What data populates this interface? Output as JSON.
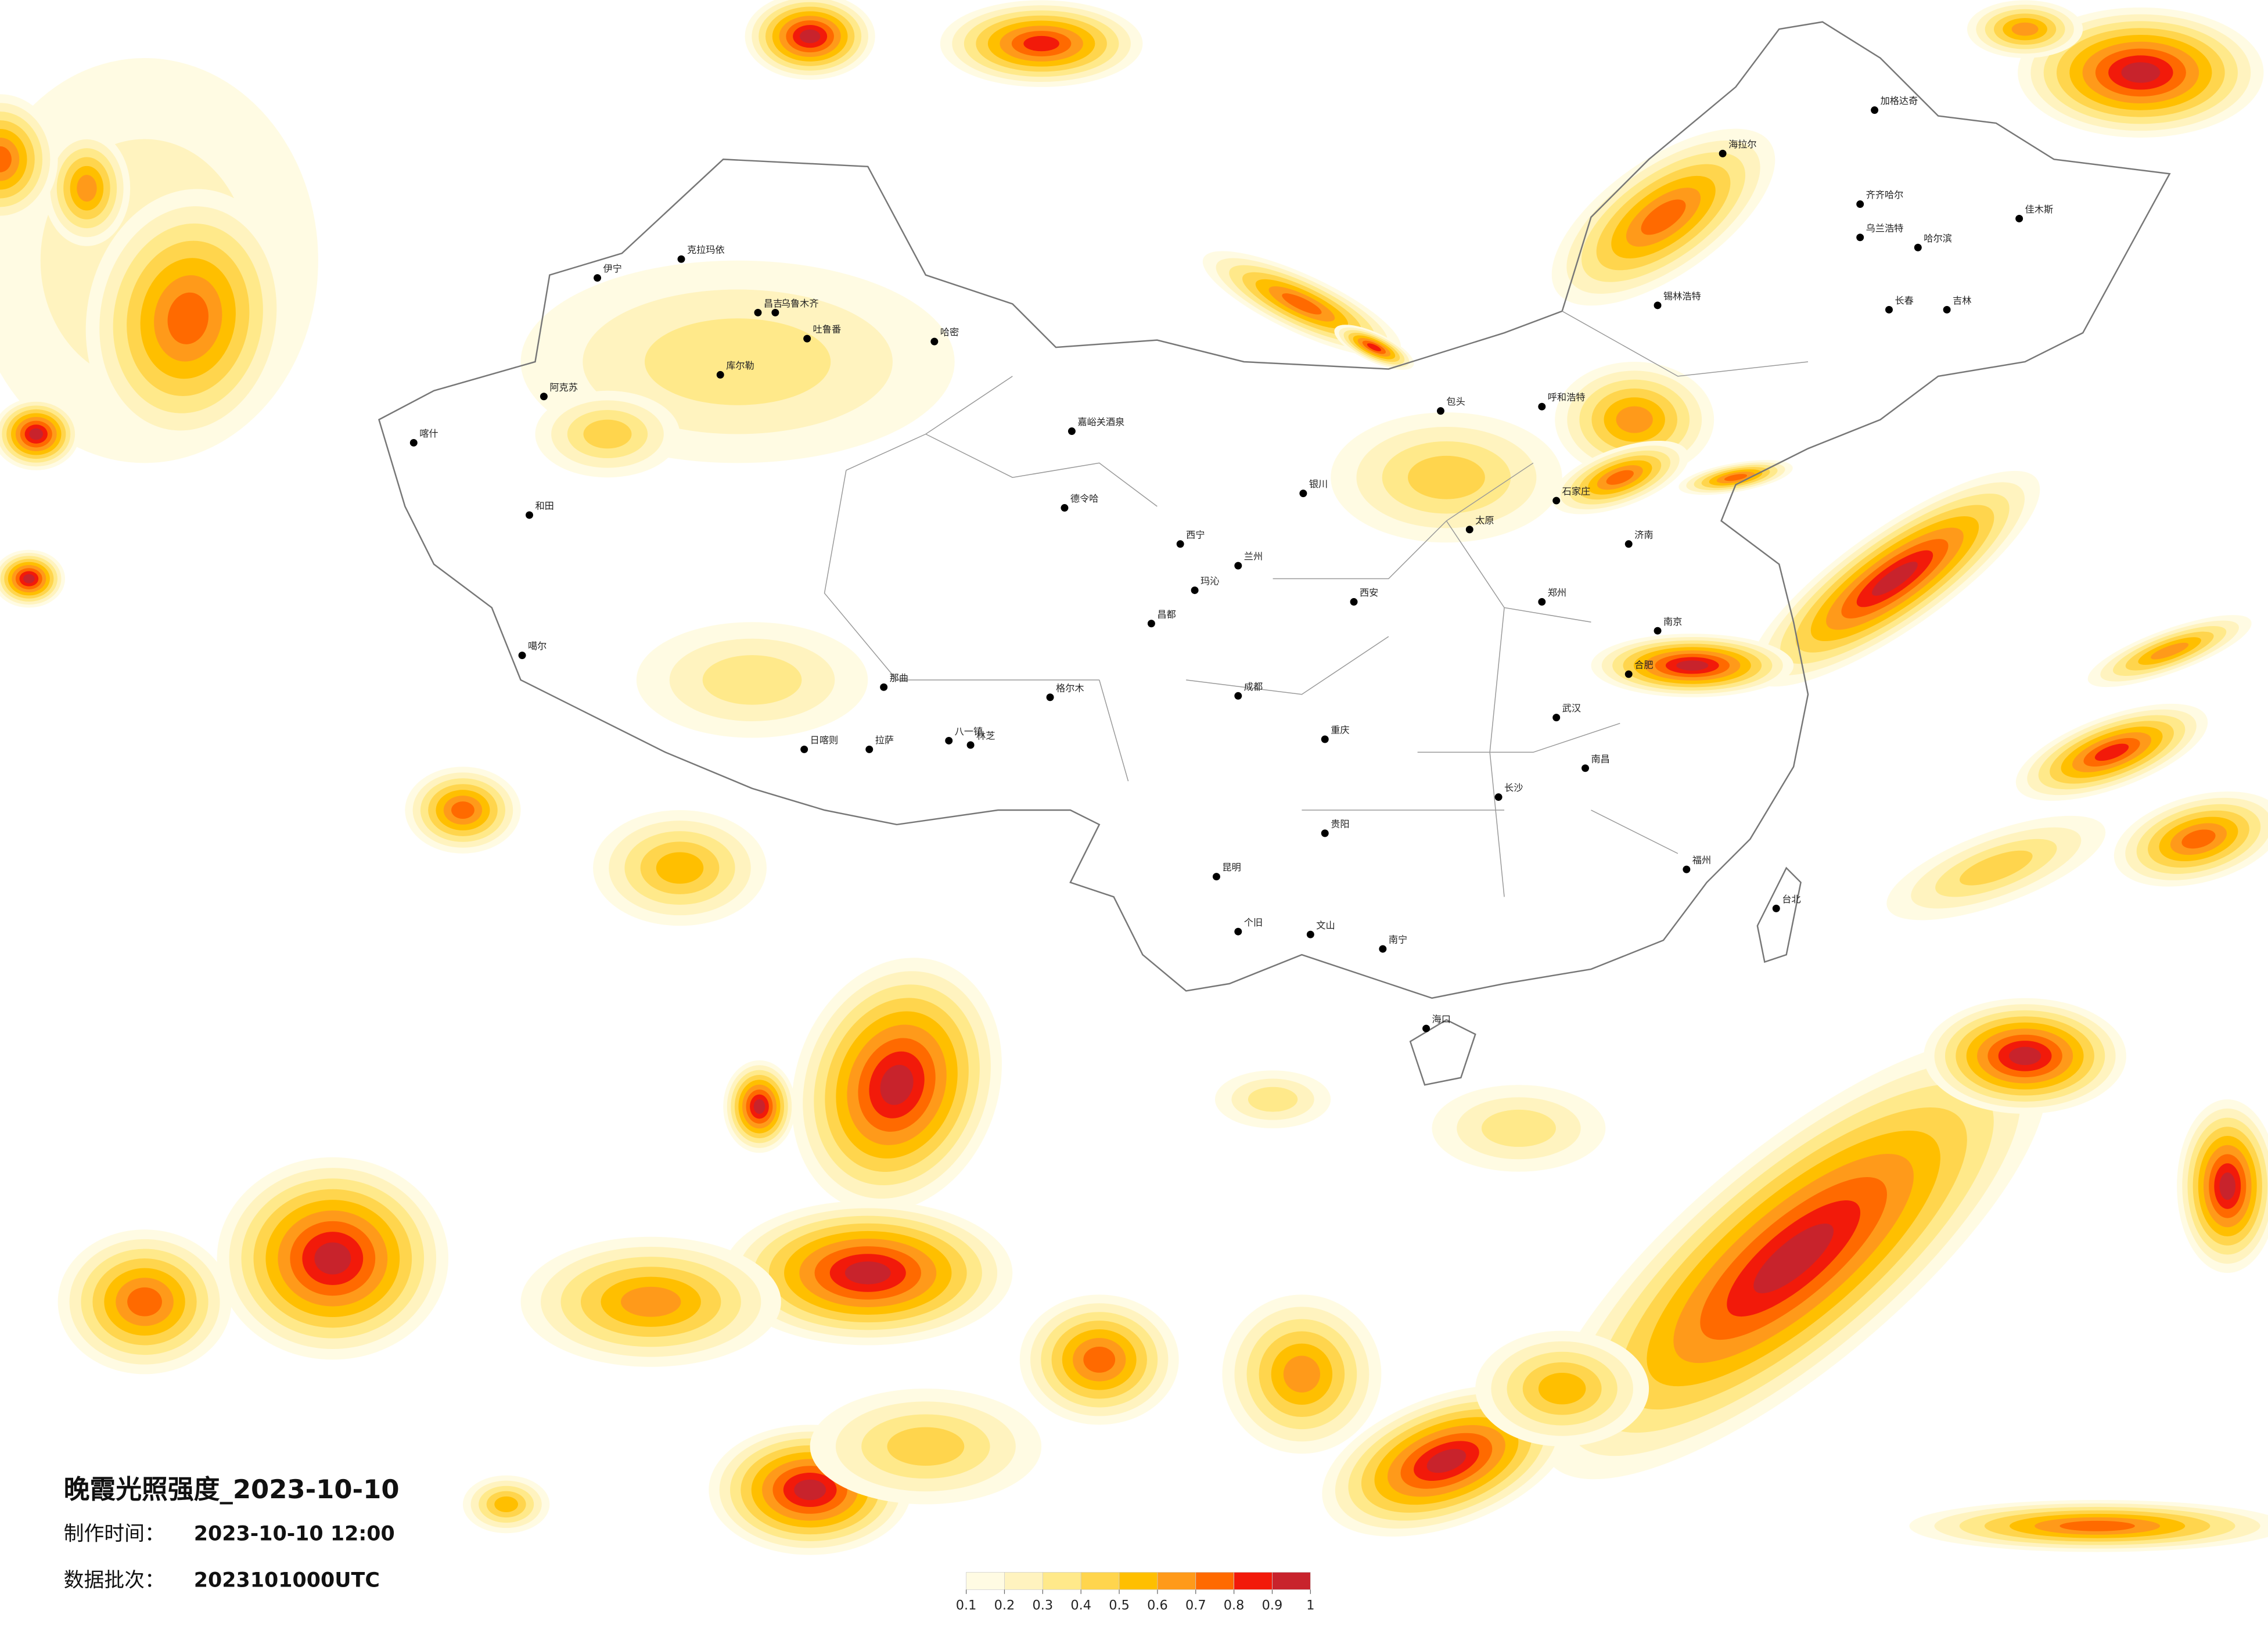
{
  "header": {
    "title": "晚霞光照强度_2023-10-10",
    "made_label": "制作时间：",
    "made_time": "2023-10-10 12:00",
    "batch_label": "数据批次：",
    "batch": "2023101000UTC"
  },
  "colorbar": {
    "ticks": [
      0.1,
      0.2,
      0.3,
      0.4,
      0.5,
      0.6,
      0.7,
      0.8,
      0.9,
      1
    ],
    "colors": [
      "#fffbe3",
      "#fff3bf",
      "#ffe98a",
      "#ffd54d",
      "#ffbf00",
      "#ff9a1a",
      "#ff6a00",
      "#f21a0a",
      "#c8232c"
    ]
  },
  "cities": [
    "克拉玛依",
    "伊宁",
    "昌吉",
    "乌鲁木齐",
    "吐鲁番",
    "哈密",
    "库尔勒",
    "阿克苏",
    "喀什",
    "和田",
    "嘉峪关酒泉",
    "德令哈",
    "格尔木",
    "玛沁",
    "那曲",
    "拉萨",
    "日喀则",
    "林芝",
    "八一镇",
    "昌都",
    "噶尔",
    "海拉尔",
    "齐齐哈尔",
    "哈尔滨",
    "长春",
    "吉林",
    "佳木斯",
    "加格达奇",
    "呼和浩特",
    "包头",
    "银川",
    "西宁",
    "兰州",
    "西安",
    "太原",
    "石家庄",
    "济南",
    "郑州",
    "南京",
    "合肥",
    "武汉",
    "成都",
    "重庆",
    "贵阳",
    "昆明",
    "南宁",
    "长沙",
    "南昌",
    "福州",
    "海口",
    "台北",
    "个旧",
    "文山",
    "乌兰浩特",
    "锡林浩特"
  ]
}
